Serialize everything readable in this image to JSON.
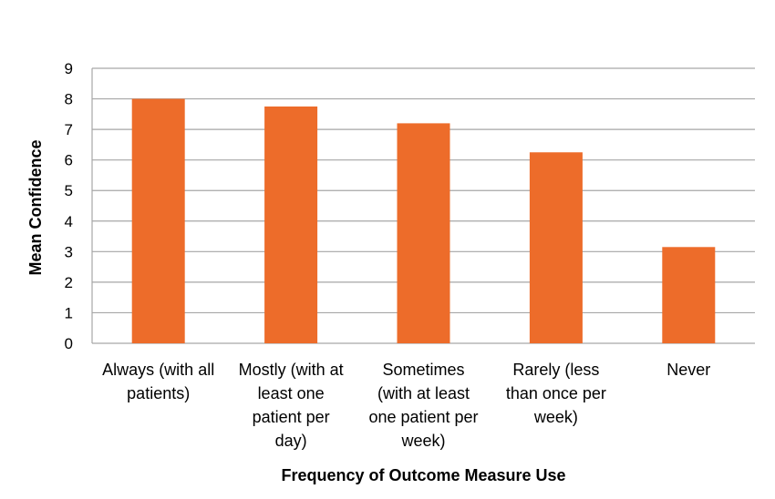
{
  "chart_data": {
    "type": "bar",
    "categories": [
      [
        "Always (with all",
        "patients)"
      ],
      [
        "Mostly (with at",
        "least one",
        "patient per",
        "day)"
      ],
      [
        "Sometimes",
        "(with at least",
        "one patient per",
        "week)"
      ],
      [
        "Rarely (less",
        "than once per",
        "week)"
      ],
      [
        "Never"
      ]
    ],
    "values": [
      8.0,
      7.75,
      7.2,
      6.25,
      3.15
    ],
    "xlabel": "Frequency of Outcome Measure Use",
    "ylabel": "Mean Confidence",
    "ylim": [
      0,
      9
    ],
    "yticks": [
      0,
      1,
      2,
      3,
      4,
      5,
      6,
      7,
      8,
      9
    ],
    "grid": true,
    "bar_color": "#ED6C2A",
    "grid_color": "#A6A6A6"
  }
}
